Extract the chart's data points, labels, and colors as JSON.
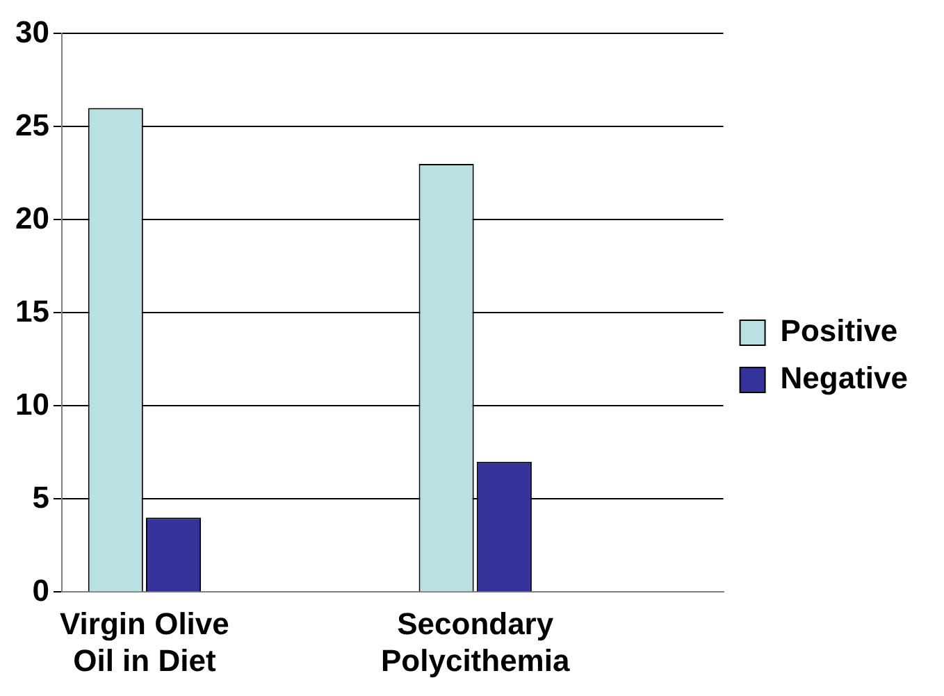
{
  "chart_data": {
    "type": "bar",
    "categories": [
      "Virgin Olive Oil in Diet",
      null,
      "Secondary Polycithemia",
      null
    ],
    "series": [
      {
        "name": "Positive",
        "color": "#b9e0e3",
        "values": [
          26,
          null,
          23,
          null
        ]
      },
      {
        "name": "Negative",
        "color": "#333399",
        "values": [
          4,
          null,
          7,
          null
        ]
      }
    ],
    "ylim": [
      0,
      30
    ],
    "yticks": [
      0,
      5,
      10,
      15,
      20,
      25,
      30
    ],
    "grid": "y",
    "legend": "right"
  }
}
